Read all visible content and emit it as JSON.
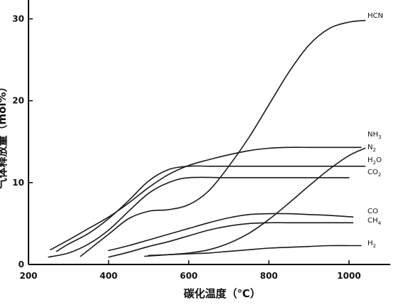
{
  "chart_data": {
    "type": "line",
    "xlabel": "碳化温度（℃）",
    "ylabel": "气体释放量（mol%）",
    "xlim": [
      200,
      1100
    ],
    "ylim": [
      0,
      32
    ],
    "x_ticks": [
      200,
      400,
      600,
      800,
      1000
    ],
    "y_ticks": [
      0,
      10,
      20,
      30
    ],
    "grid": false,
    "series": [
      {
        "name": "HCN",
        "x": [
          330,
          400,
          450,
          500,
          550,
          600,
          650,
          700,
          750,
          800,
          850,
          900,
          950,
          1000,
          1040
        ],
        "y": [
          1.0,
          3.7,
          5.6,
          6.5,
          6.7,
          7.3,
          9.0,
          12.0,
          15.5,
          19.5,
          23.5,
          26.8,
          28.8,
          29.6,
          29.8
        ]
      },
      {
        "name": "NH3",
        "x": [
          255,
          300,
          350,
          400,
          450,
          500,
          550,
          600,
          650,
          700,
          750,
          800,
          850,
          900,
          950,
          1000,
          1030
        ],
        "y": [
          1.8,
          3.0,
          4.4,
          5.8,
          7.5,
          9.4,
          11.0,
          12.1,
          12.8,
          13.4,
          13.9,
          14.2,
          14.3,
          14.3,
          14.3,
          14.3,
          14.3
        ]
      },
      {
        "name": "N2",
        "x": [
          490,
          550,
          600,
          650,
          700,
          750,
          800,
          850,
          900,
          950,
          1000,
          1040
        ],
        "y": [
          1.0,
          1.2,
          1.4,
          1.8,
          2.6,
          3.8,
          5.5,
          7.5,
          9.6,
          11.6,
          13.3,
          14.2
        ]
      },
      {
        "name": "H2O",
        "x": [
          270,
          300,
          350,
          400,
          450,
          500,
          550,
          600,
          650,
          700,
          800,
          900,
          1000,
          1040
        ],
        "y": [
          1.6,
          2.5,
          3.8,
          5.6,
          7.8,
          10.2,
          11.6,
          12.0,
          12.0,
          12.0,
          12.0,
          12.0,
          12.0,
          12.0
        ]
      },
      {
        "name": "CO2",
        "x": [
          250,
          300,
          350,
          400,
          450,
          500,
          550,
          600,
          700,
          800,
          900,
          1000
        ],
        "y": [
          0.9,
          1.4,
          2.5,
          4.2,
          6.5,
          8.7,
          10.0,
          10.6,
          10.6,
          10.6,
          10.6,
          10.6
        ]
      },
      {
        "name": "CO",
        "x": [
          400,
          450,
          500,
          550,
          600,
          650,
          700,
          750,
          800,
          850,
          900,
          950,
          1010
        ],
        "y": [
          1.7,
          2.3,
          3.0,
          3.7,
          4.4,
          5.1,
          5.7,
          6.1,
          6.2,
          6.2,
          6.1,
          6.0,
          5.8
        ]
      },
      {
        "name": "CH4",
        "x": [
          400,
          450,
          500,
          550,
          600,
          650,
          700,
          750,
          800,
          850,
          900,
          950,
          1010
        ],
        "y": [
          0.9,
          1.5,
          2.2,
          2.8,
          3.5,
          4.2,
          4.7,
          5.0,
          5.1,
          5.1,
          5.1,
          5.1,
          5.1
        ]
      },
      {
        "name": "H2",
        "x": [
          500,
          550,
          600,
          650,
          700,
          750,
          800,
          850,
          900,
          950,
          1000,
          1030
        ],
        "y": [
          1.1,
          1.2,
          1.3,
          1.4,
          1.6,
          1.8,
          2.0,
          2.1,
          2.2,
          2.3,
          2.3,
          2.3
        ]
      }
    ]
  }
}
